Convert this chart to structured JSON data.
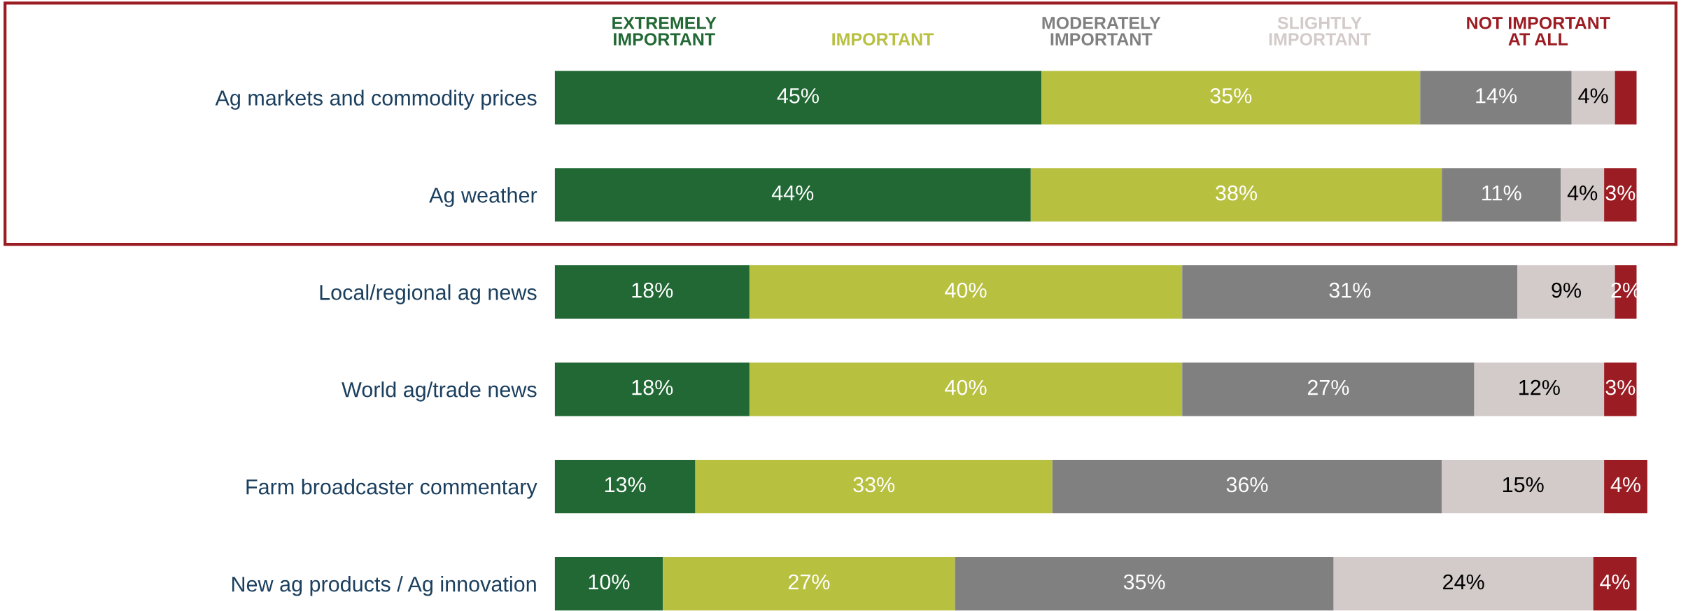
{
  "chart_data": {
    "type": "bar",
    "orientation": "horizontal",
    "stacked": true,
    "legend": "top",
    "categories": [
      "Ag markets and commodity prices",
      "Ag weather",
      "Local/regional ag news",
      "World ag/trade news",
      "Farm broadcaster commentary",
      "New ag products / Ag innovation"
    ],
    "series": [
      {
        "name": "EXTREMELY\nIMPORTANT",
        "color": "#216834",
        "values": [
          45,
          44,
          18,
          18,
          13,
          10
        ],
        "value_labels": [
          "45%",
          "44%",
          "18%",
          "18%",
          "13%",
          "10%"
        ]
      },
      {
        "name": "IMPORTANT",
        "color": "#b8c040",
        "values": [
          35,
          38,
          40,
          40,
          33,
          27
        ],
        "value_labels": [
          "35%",
          "38%",
          "40%",
          "40%",
          "33%",
          "27%"
        ]
      },
      {
        "name": "MODERATELY\nIMPORTANT",
        "color": "#808080",
        "values": [
          14,
          11,
          31,
          27,
          36,
          35
        ],
        "value_labels": [
          "14%",
          "11%",
          "31%",
          "27%",
          "36%",
          "35%"
        ]
      },
      {
        "name": "SLIGHTLY\nIMPORTANT",
        "color": "#d3cbc9",
        "values": [
          4,
          4,
          9,
          12,
          15,
          24
        ],
        "value_labels": [
          "4%",
          "4%",
          "9%",
          "12%",
          "15%",
          "24%"
        ]
      },
      {
        "name": "NOT IMPORTANT\nAT ALL",
        "color": "#9b1c23",
        "values": [
          2,
          3,
          2,
          3,
          4,
          4
        ],
        "value_labels": [
          null,
          "3%",
          "2%",
          "3%",
          "4%",
          "4%"
        ]
      }
    ]
  }
}
